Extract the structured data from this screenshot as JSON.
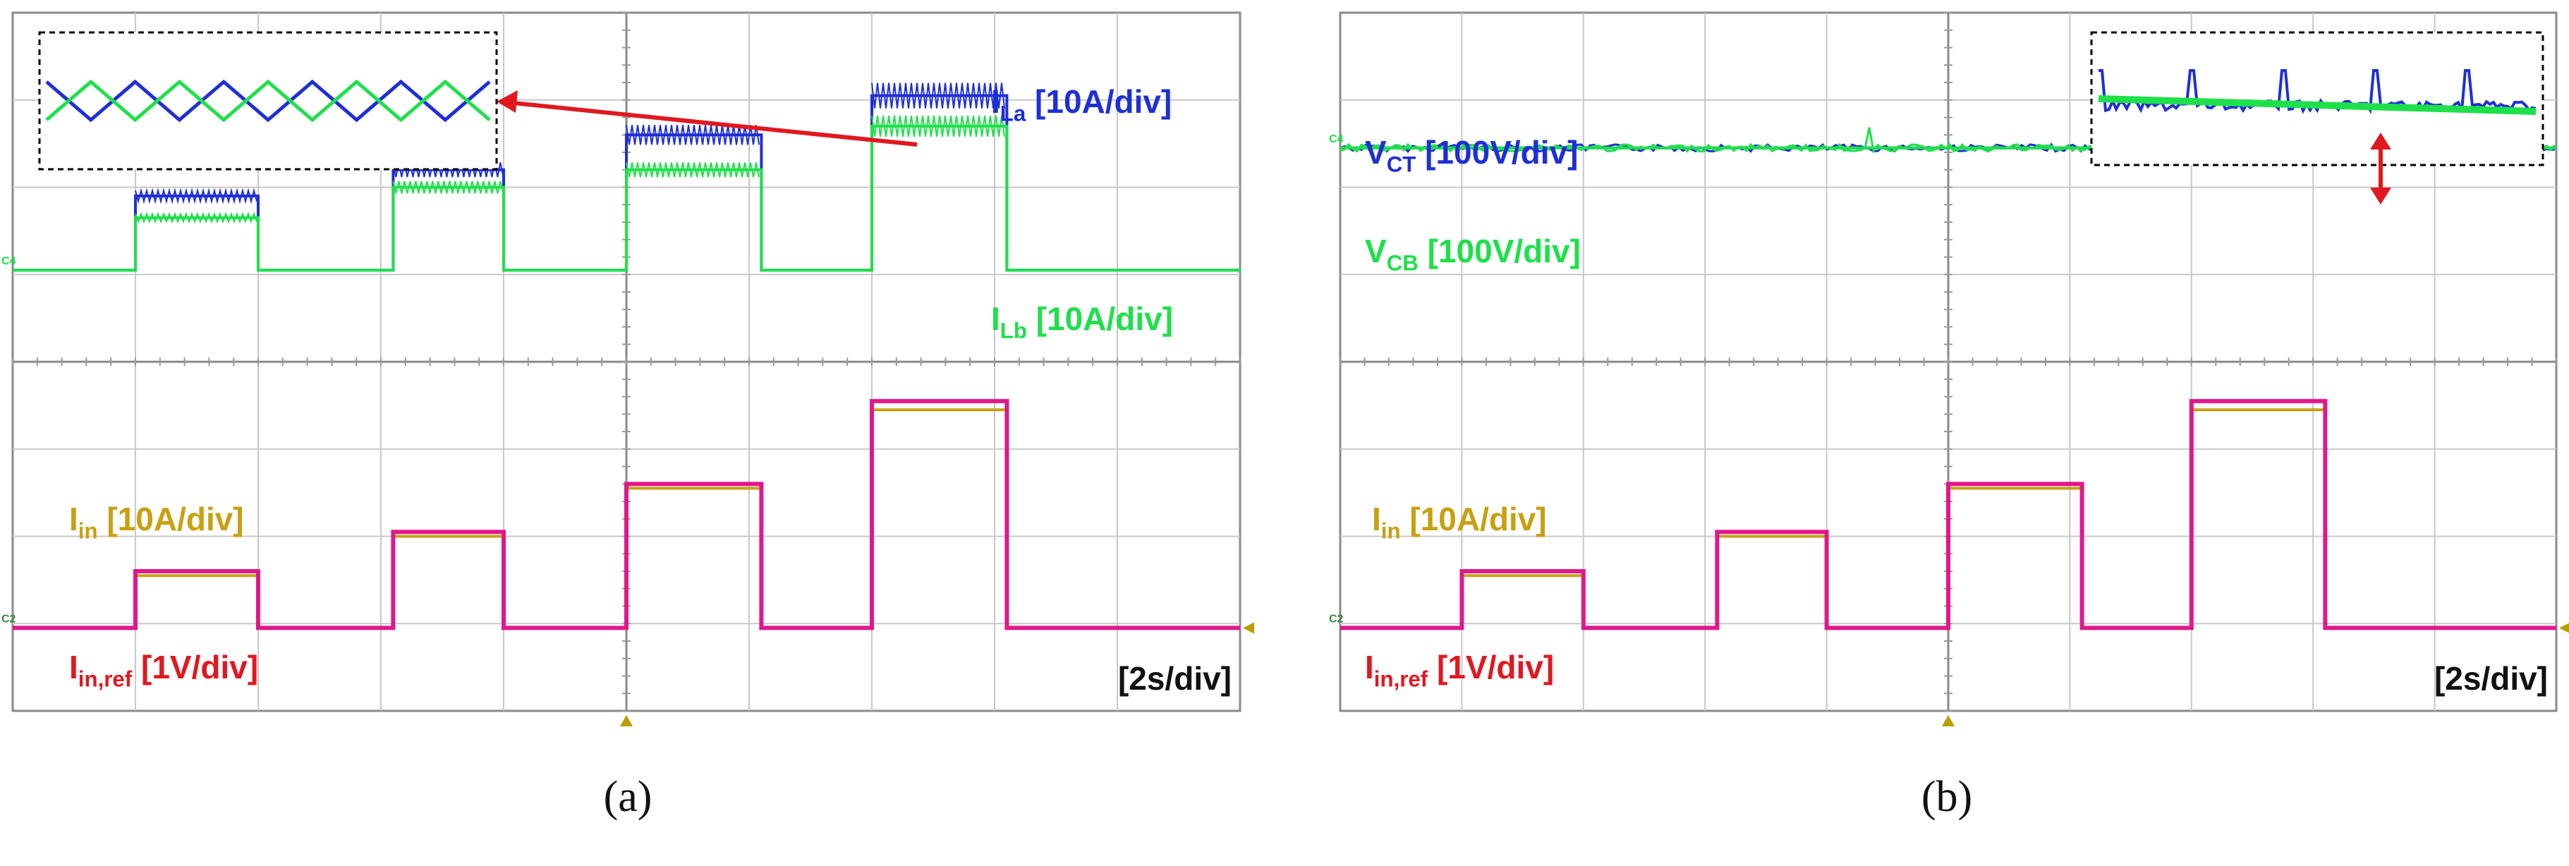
{
  "panels": [
    {
      "id": "a",
      "caption": "(a)",
      "grid": {
        "cols": 10,
        "rows": 8
      },
      "labels": {
        "ila": {
          "main": "I",
          "sub": "La",
          "scale": " [10A/div]"
        },
        "ilb": {
          "main": "I",
          "sub": "Lb",
          "scale": " [10A/div]"
        },
        "iin": {
          "main": "I",
          "sub": "in",
          "scale": " [10A/div]"
        },
        "iref": {
          "main": "I",
          "sub": "in,ref",
          "scale": " [1V/div]"
        },
        "time": "[2s/div]"
      },
      "channel_markers": {
        "upper": "C4",
        "lower": "C2"
      }
    },
    {
      "id": "b",
      "caption": "(b)",
      "grid": {
        "cols": 10,
        "rows": 8
      },
      "labels": {
        "vct": {
          "main": "V",
          "sub": "CT",
          "scale": " [100V/div]"
        },
        "vcb": {
          "main": "V",
          "sub": "CB",
          "scale": " [100V/div]"
        },
        "iin": {
          "main": "I",
          "sub": "in",
          "scale": " [10A/div]"
        },
        "iref": {
          "main": "I",
          "sub": "in,ref",
          "scale": " [1V/div]"
        },
        "time": "[2s/div]"
      },
      "channel_markers": {
        "upper": "C4",
        "lower": "C2"
      }
    }
  ],
  "colors": {
    "blue": "#1f2fd6",
    "green": "#1ee04a",
    "gold": "#c8a010",
    "red": "#e01820",
    "magenta": "#e0188c",
    "grid": "#c8c8c8",
    "marker": "#b8a000"
  },
  "chart_data": [
    {
      "type": "line",
      "panel": "a",
      "x_unit": "div",
      "xlim": [
        0,
        10
      ],
      "ylim": [
        0,
        8
      ],
      "series": [
        {
          "name": "ILa",
          "x": [
            0,
            1.0,
            1.0,
            2.0,
            2.0,
            3.1,
            3.1,
            4.0,
            4.0,
            5.0,
            5.0,
            6.1,
            6.1,
            7.0,
            7.0,
            8.1,
            8.1,
            10
          ],
          "y": [
            5.05,
            5.05,
            5.9,
            5.9,
            5.05,
            5.05,
            6.2,
            6.2,
            5.05,
            5.05,
            6.6,
            6.6,
            5.05,
            5.05,
            7.05,
            7.05,
            5.05,
            5.05
          ]
        },
        {
          "name": "ILb",
          "x": [
            0,
            1.0,
            1.0,
            2.0,
            2.0,
            3.1,
            3.1,
            4.0,
            4.0,
            5.0,
            5.0,
            6.1,
            6.1,
            7.0,
            7.0,
            8.1,
            8.1,
            10
          ],
          "y": [
            5.05,
            5.05,
            5.65,
            5.65,
            5.05,
            5.05,
            6.0,
            6.0,
            5.05,
            5.05,
            6.2,
            6.2,
            5.05,
            5.05,
            6.7,
            6.7,
            5.05,
            5.05
          ]
        },
        {
          "name": "Iin",
          "x": [
            0,
            1.0,
            1.0,
            2.0,
            2.0,
            3.1,
            3.1,
            4.0,
            4.0,
            5.0,
            5.0,
            6.1,
            6.1,
            7.0,
            7.0,
            8.1,
            8.1,
            10
          ],
          "y": [
            0.95,
            0.95,
            1.55,
            1.55,
            0.95,
            0.95,
            2.0,
            2.0,
            0.95,
            0.95,
            2.55,
            2.55,
            0.95,
            0.95,
            3.45,
            3.45,
            0.95,
            0.95
          ]
        },
        {
          "name": "Iin,ref",
          "x": [
            0,
            1.0,
            1.0,
            2.0,
            2.0,
            3.1,
            3.1,
            4.0,
            4.0,
            5.0,
            5.0,
            6.1,
            6.1,
            7.0,
            7.0,
            8.1,
            8.1,
            10
          ],
          "y": [
            0.95,
            0.95,
            1.6,
            1.6,
            0.95,
            0.95,
            2.05,
            2.05,
            0.95,
            0.95,
            2.6,
            2.6,
            0.95,
            0.95,
            3.55,
            3.55,
            0.95,
            0.95
          ]
        }
      ]
    },
    {
      "type": "line",
      "panel": "b",
      "x_unit": "div",
      "xlim": [
        0,
        10
      ],
      "ylim": [
        0,
        8
      ],
      "series": [
        {
          "name": "VCT",
          "x": [
            0,
            10
          ],
          "y": [
            6.45,
            6.45
          ]
        },
        {
          "name": "VCB",
          "x": [
            0,
            10
          ],
          "y": [
            6.45,
            6.45
          ]
        },
        {
          "name": "Iin",
          "x": [
            0,
            1.0,
            1.0,
            2.0,
            2.0,
            3.1,
            3.1,
            4.0,
            4.0,
            5.0,
            5.0,
            6.1,
            6.1,
            7.0,
            7.0,
            8.1,
            8.1,
            10
          ],
          "y": [
            0.95,
            0.95,
            1.55,
            1.55,
            0.95,
            0.95,
            2.0,
            2.0,
            0.95,
            0.95,
            2.55,
            2.55,
            0.95,
            0.95,
            3.45,
            3.45,
            0.95,
            0.95
          ]
        },
        {
          "name": "Iin,ref",
          "x": [
            0,
            1.0,
            1.0,
            2.0,
            2.0,
            3.1,
            3.1,
            4.0,
            4.0,
            5.0,
            5.0,
            6.1,
            6.1,
            7.0,
            7.0,
            8.1,
            8.1,
            10
          ],
          "y": [
            0.95,
            0.95,
            1.6,
            1.6,
            0.95,
            0.95,
            2.05,
            2.05,
            0.95,
            0.95,
            2.6,
            2.6,
            0.95,
            0.95,
            3.55,
            3.55,
            0.95,
            0.95
          ]
        }
      ]
    }
  ]
}
